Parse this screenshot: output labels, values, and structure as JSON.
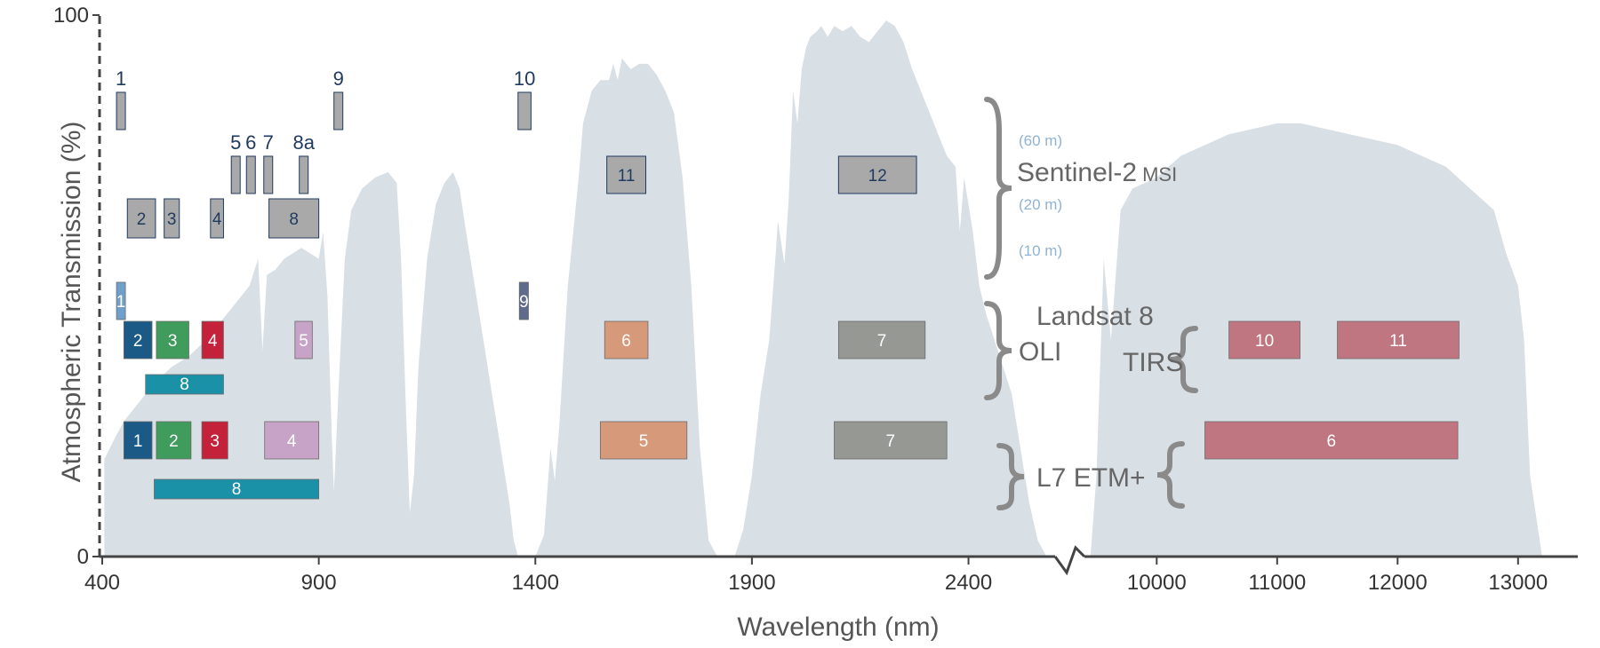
{
  "chart_data": {
    "type": "area",
    "title": "",
    "xlabel": "Wavelength (nm)",
    "ylabel": "Atmospheric Transmission (%)",
    "ylim": [
      0,
      100
    ],
    "x_segments": [
      {
        "range": [
          400,
          2600
        ],
        "ticks": [
          400,
          900,
          1400,
          1900,
          2400
        ]
      },
      {
        "range": [
          9400,
          13400
        ],
        "ticks": [
          10000,
          11000,
          12000,
          13000
        ]
      }
    ],
    "y_ticks": [
      0,
      100
    ],
    "axis_break": true,
    "transmission": {
      "color": "#d8dfe5",
      "segment1": [
        [
          405,
          18
        ],
        [
          430,
          22
        ],
        [
          450,
          25
        ],
        [
          480,
          28
        ],
        [
          520,
          32
        ],
        [
          560,
          35
        ],
        [
          600,
          37
        ],
        [
          640,
          40
        ],
        [
          680,
          44
        ],
        [
          710,
          47
        ],
        [
          740,
          50
        ],
        [
          760,
          55
        ],
        [
          770,
          38
        ],
        [
          780,
          52
        ],
        [
          800,
          53
        ],
        [
          820,
          55
        ],
        [
          840,
          56
        ],
        [
          860,
          57
        ],
        [
          880,
          56
        ],
        [
          900,
          55
        ],
        [
          910,
          60
        ],
        [
          920,
          48
        ],
        [
          930,
          22
        ],
        [
          935,
          12
        ],
        [
          945,
          30
        ],
        [
          960,
          55
        ],
        [
          975,
          64
        ],
        [
          1000,
          68
        ],
        [
          1030,
          70
        ],
        [
          1060,
          71
        ],
        [
          1080,
          69
        ],
        [
          1090,
          55
        ],
        [
          1100,
          30
        ],
        [
          1110,
          8
        ],
        [
          1120,
          15
        ],
        [
          1130,
          35
        ],
        [
          1150,
          55
        ],
        [
          1170,
          65
        ],
        [
          1190,
          69
        ],
        [
          1210,
          71
        ],
        [
          1225,
          68
        ],
        [
          1240,
          60
        ],
        [
          1260,
          50
        ],
        [
          1280,
          40
        ],
        [
          1300,
          30
        ],
        [
          1320,
          20
        ],
        [
          1340,
          10
        ],
        [
          1350,
          3
        ],
        [
          1360,
          0
        ],
        [
          1400,
          0
        ],
        [
          1420,
          4
        ],
        [
          1435,
          20
        ],
        [
          1445,
          14
        ],
        [
          1455,
          24
        ],
        [
          1475,
          50
        ],
        [
          1500,
          70
        ],
        [
          1510,
          80
        ],
        [
          1530,
          86
        ],
        [
          1550,
          88
        ],
        [
          1570,
          88
        ],
        [
          1580,
          91
        ],
        [
          1590,
          88
        ],
        [
          1600,
          92
        ],
        [
          1620,
          90
        ],
        [
          1640,
          91
        ],
        [
          1660,
          91
        ],
        [
          1680,
          89
        ],
        [
          1700,
          86
        ],
        [
          1720,
          82
        ],
        [
          1740,
          70
        ],
        [
          1760,
          50
        ],
        [
          1780,
          20
        ],
        [
          1800,
          3
        ],
        [
          1820,
          0
        ],
        [
          1860,
          0
        ],
        [
          1880,
          5
        ],
        [
          1900,
          15
        ],
        [
          1920,
          30
        ],
        [
          1940,
          40
        ],
        [
          1955,
          56
        ],
        [
          1960,
          62
        ],
        [
          1975,
          54
        ],
        [
          1985,
          66
        ],
        [
          1995,
          86
        ],
        [
          2005,
          80
        ],
        [
          2015,
          90
        ],
        [
          2025,
          94
        ],
        [
          2035,
          96
        ],
        [
          2050,
          97
        ],
        [
          2060,
          98
        ],
        [
          2075,
          96
        ],
        [
          2090,
          98
        ],
        [
          2110,
          97
        ],
        [
          2130,
          98
        ],
        [
          2150,
          96
        ],
        [
          2170,
          95
        ],
        [
          2190,
          97
        ],
        [
          2210,
          99
        ],
        [
          2230,
          98
        ],
        [
          2250,
          95
        ],
        [
          2270,
          90
        ],
        [
          2290,
          86
        ],
        [
          2310,
          82
        ],
        [
          2330,
          78
        ],
        [
          2350,
          74
        ],
        [
          2370,
          72
        ],
        [
          2380,
          60
        ],
        [
          2390,
          70
        ],
        [
          2410,
          60
        ],
        [
          2425,
          50
        ],
        [
          2440,
          45
        ],
        [
          2460,
          40
        ],
        [
          2480,
          35
        ],
        [
          2500,
          30
        ],
        [
          2520,
          20
        ],
        [
          2540,
          10
        ],
        [
          2560,
          3
        ],
        [
          2580,
          0
        ]
      ],
      "segment2": [
        [
          9450,
          0
        ],
        [
          9500,
          15
        ],
        [
          9560,
          55
        ],
        [
          9620,
          40
        ],
        [
          9700,
          64
        ],
        [
          9800,
          68
        ],
        [
          9900,
          69
        ],
        [
          10000,
          70
        ],
        [
          10100,
          72
        ],
        [
          10200,
          74
        ],
        [
          10400,
          76
        ],
        [
          10600,
          78
        ],
        [
          10800,
          79
        ],
        [
          11000,
          80
        ],
        [
          11200,
          80
        ],
        [
          11400,
          79
        ],
        [
          11600,
          78
        ],
        [
          11800,
          77
        ],
        [
          12000,
          76
        ],
        [
          12200,
          74
        ],
        [
          12400,
          72
        ],
        [
          12600,
          68
        ],
        [
          12800,
          64
        ],
        [
          12900,
          56
        ],
        [
          13000,
          50
        ],
        [
          13050,
          40
        ],
        [
          13100,
          15
        ],
        [
          13200,
          0
        ]
      ]
    },
    "sensors": [
      {
        "name": "Sentinel-2",
        "sub": "MSI",
        "resolutions": [
          "(60 m)",
          "(20 m)",
          "(10 m)"
        ]
      },
      {
        "name": "Landsat 8",
        "sub_oli": "OLI",
        "sub_tirs": "TIRS"
      },
      {
        "name": "L7 ETM+"
      }
    ],
    "bands": [
      {
        "sensor": "Sentinel-2",
        "res": "60 m",
        "label": "1",
        "x0": 433,
        "x1": 453,
        "color": "#a9a9a9"
      },
      {
        "sensor": "Sentinel-2",
        "res": "60 m",
        "label": "9",
        "x0": 935,
        "x1": 955,
        "color": "#a9a9a9"
      },
      {
        "sensor": "Sentinel-2",
        "res": "60 m",
        "label": "10",
        "x0": 1360,
        "x1": 1390,
        "color": "#a9a9a9"
      },
      {
        "sensor": "Sentinel-2",
        "res": "20 m",
        "label": "5",
        "x0": 698,
        "x1": 713,
        "color": "#a9a9a9"
      },
      {
        "sensor": "Sentinel-2",
        "res": "20 m",
        "label": "6",
        "x0": 733,
        "x1": 748,
        "color": "#a9a9a9"
      },
      {
        "sensor": "Sentinel-2",
        "res": "20 m",
        "label": "7",
        "x0": 773,
        "x1": 793,
        "color": "#a9a9a9"
      },
      {
        "sensor": "Sentinel-2",
        "res": "20 m",
        "label": "8a",
        "x0": 855,
        "x1": 875,
        "color": "#a9a9a9"
      },
      {
        "sensor": "Sentinel-2",
        "res": "20 m",
        "label": "11",
        "x0": 1565,
        "x1": 1655,
        "color": "#a9a9a9"
      },
      {
        "sensor": "Sentinel-2",
        "res": "20 m",
        "label": "12",
        "x0": 2100,
        "x1": 2280,
        "color": "#a9a9a9"
      },
      {
        "sensor": "Sentinel-2",
        "res": "10 m",
        "label": "2",
        "x0": 458,
        "x1": 523,
        "color": "#a9a9a9"
      },
      {
        "sensor": "Sentinel-2",
        "res": "10 m",
        "label": "3",
        "x0": 543,
        "x1": 578,
        "color": "#a9a9a9"
      },
      {
        "sensor": "Sentinel-2",
        "res": "10 m",
        "label": "4",
        "x0": 650,
        "x1": 680,
        "color": "#a9a9a9"
      },
      {
        "sensor": "Sentinel-2",
        "res": "10 m",
        "label": "8",
        "x0": 785,
        "x1": 900,
        "color": "#a9a9a9"
      },
      {
        "sensor": "Landsat 8",
        "label": "1",
        "x0": 433,
        "x1": 453,
        "color": "#6fa0cc"
      },
      {
        "sensor": "Landsat 8",
        "label": "9",
        "x0": 1363,
        "x1": 1384,
        "color": "#5e6b8c"
      },
      {
        "sensor": "Landsat 8",
        "label": "2",
        "x0": 450,
        "x1": 515,
        "color": "#1b5a86"
      },
      {
        "sensor": "Landsat 8",
        "label": "3",
        "x0": 525,
        "x1": 600,
        "color": "#3f9c5c"
      },
      {
        "sensor": "Landsat 8",
        "label": "4",
        "x0": 630,
        "x1": 680,
        "color": "#c4213a"
      },
      {
        "sensor": "Landsat 8",
        "label": "5",
        "x0": 845,
        "x1": 885,
        "color": "#c7a3c8"
      },
      {
        "sensor": "Landsat 8",
        "label": "6",
        "x0": 1560,
        "x1": 1660,
        "color": "#d69a7a"
      },
      {
        "sensor": "Landsat 8",
        "label": "7",
        "x0": 2100,
        "x1": 2300,
        "color": "#969893"
      },
      {
        "sensor": "Landsat 8",
        "label": "8",
        "x0": 500,
        "x1": 680,
        "color": "#1b91a8"
      },
      {
        "sensor": "Landsat 8",
        "sub": "TIRS",
        "label": "10",
        "x0": 10600,
        "x1": 11190,
        "color": "#c07680"
      },
      {
        "sensor": "Landsat 8",
        "sub": "TIRS",
        "label": "11",
        "x0": 11500,
        "x1": 12510,
        "color": "#c07680"
      },
      {
        "sensor": "L7 ETM+",
        "label": "1",
        "x0": 450,
        "x1": 515,
        "color": "#1b5a86"
      },
      {
        "sensor": "L7 ETM+",
        "label": "2",
        "x0": 525,
        "x1": 605,
        "color": "#3f9c5c"
      },
      {
        "sensor": "L7 ETM+",
        "label": "3",
        "x0": 630,
        "x1": 690,
        "color": "#c4213a"
      },
      {
        "sensor": "L7 ETM+",
        "label": "4",
        "x0": 775,
        "x1": 900,
        "color": "#c7a3c8"
      },
      {
        "sensor": "L7 ETM+",
        "label": "5",
        "x0": 1550,
        "x1": 1750,
        "color": "#d69a7a"
      },
      {
        "sensor": "L7 ETM+",
        "label": "7",
        "x0": 2090,
        "x1": 2350,
        "color": "#969893"
      },
      {
        "sensor": "L7 ETM+",
        "label": "8",
        "x0": 520,
        "x1": 900,
        "color": "#1b91a8"
      },
      {
        "sensor": "L7 ETM+",
        "label": "6",
        "x0": 10400,
        "x1": 12500,
        "color": "#c07680"
      }
    ]
  }
}
